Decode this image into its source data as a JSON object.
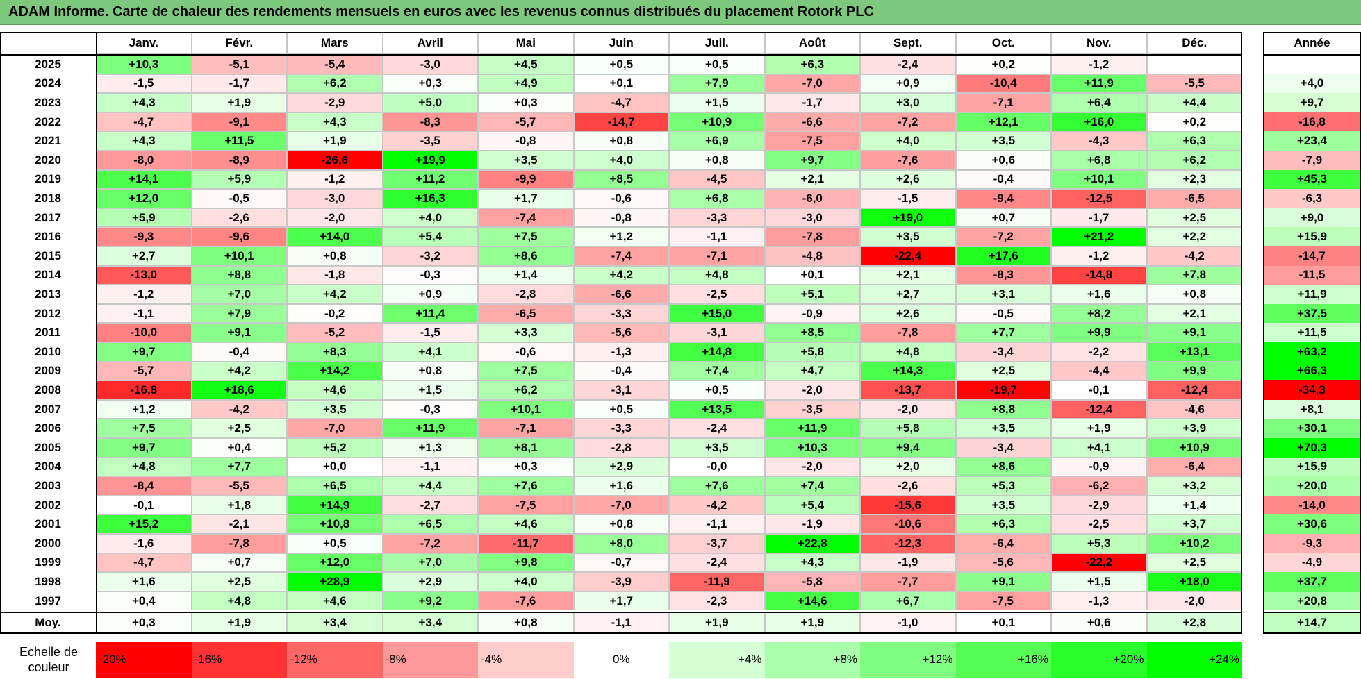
{
  "title": "ADAM Informe. Carte de chaleur des rendements mensuels en euros avec les revenus connus distribués du placement Rotork PLC",
  "chart_data": {
    "type": "heatmap",
    "title": "ADAM Informe. Carte de chaleur des rendements mensuels en euros avec les revenus connus distribués du placement Rotork PLC",
    "columns": [
      "Janv.",
      "Févr.",
      "Mars",
      "Avril",
      "Mai",
      "Juin",
      "Juil.",
      "Août",
      "Sept.",
      "Oct.",
      "Nov.",
      "Déc."
    ],
    "year_column": "Année",
    "rows": [
      {
        "year": "2025",
        "values": [
          "+10,3",
          "-5,1",
          "-5,4",
          "-3,0",
          "+4,5",
          "+0,5",
          "+0,5",
          "+6,3",
          "-2,4",
          "+0,2",
          "-1,2",
          ""
        ],
        "annual": ""
      },
      {
        "year": "2024",
        "values": [
          "-1,5",
          "-1,7",
          "+6,2",
          "+0,3",
          "+4,9",
          "+0,1",
          "+7,9",
          "-7,0",
          "+0,9",
          "-10,4",
          "+11,9",
          "-5,5"
        ],
        "annual": "+4,0"
      },
      {
        "year": "2023",
        "values": [
          "+4,3",
          "+1,9",
          "-2,9",
          "+5,0",
          "+0,3",
          "-4,7",
          "+1,5",
          "-1,7",
          "+3,0",
          "-7,1",
          "+6,4",
          "+4,4"
        ],
        "annual": "+9,7"
      },
      {
        "year": "2022",
        "values": [
          "-4,7",
          "-9,1",
          "+4,3",
          "-8,3",
          "-5,7",
          "-14,7",
          "+10,9",
          "-6,6",
          "-7,2",
          "+12,1",
          "+16,0",
          "+0,2"
        ],
        "annual": "-16,8"
      },
      {
        "year": "2021",
        "values": [
          "+4,3",
          "+11,5",
          "+1,9",
          "-3,5",
          "-0,8",
          "+0,8",
          "+6,9",
          "-7,5",
          "+4,0",
          "+3,5",
          "-4,3",
          "+6,3"
        ],
        "annual": "+23,4"
      },
      {
        "year": "2020",
        "values": [
          "-8,0",
          "-8,9",
          "-26,6",
          "+19,9",
          "+3,5",
          "+4,0",
          "+0,8",
          "+9,7",
          "-7,6",
          "+0,6",
          "+6,8",
          "+6,2"
        ],
        "annual": "-7,9"
      },
      {
        "year": "2019",
        "values": [
          "+14,1",
          "+5,9",
          "-1,2",
          "+11,2",
          "-9,9",
          "+8,5",
          "-4,5",
          "+2,1",
          "+2,6",
          "-0,4",
          "+10,1",
          "+2,3"
        ],
        "annual": "+45,3"
      },
      {
        "year": "2018",
        "values": [
          "+12,0",
          "-0,5",
          "-3,0",
          "+16,3",
          "+1,7",
          "-0,6",
          "+6,8",
          "-6,0",
          "-1,5",
          "-9,4",
          "-12,5",
          "-6,5"
        ],
        "annual": "-6,3"
      },
      {
        "year": "2017",
        "values": [
          "+5,9",
          "-2,6",
          "-2,0",
          "+4,0",
          "-7,4",
          "-0,8",
          "-3,3",
          "-3,0",
          "+19,0",
          "+0,7",
          "-1,7",
          "+2,5"
        ],
        "annual": "+9,0"
      },
      {
        "year": "2016",
        "values": [
          "-9,3",
          "-9,6",
          "+14,0",
          "+5,4",
          "+7,5",
          "+1,2",
          "-1,1",
          "-7,8",
          "+3,5",
          "-7,2",
          "+21,2",
          "+2,2"
        ],
        "annual": "+15,9"
      },
      {
        "year": "2015",
        "values": [
          "+2,7",
          "+10,1",
          "+0,8",
          "-3,2",
          "+8,6",
          "-7,4",
          "-7,1",
          "-4,8",
          "-22,4",
          "+17,6",
          "-1,2",
          "-4,2"
        ],
        "annual": "-14,7"
      },
      {
        "year": "2014",
        "values": [
          "-13,0",
          "+8,8",
          "-1,8",
          "-0,3",
          "+1,4",
          "+4,2",
          "+4,8",
          "+0,1",
          "+2,1",
          "-8,3",
          "-14,8",
          "+7,8"
        ],
        "annual": "-11,5"
      },
      {
        "year": "2013",
        "values": [
          "-1,2",
          "+7,0",
          "+4,2",
          "+0,9",
          "-2,8",
          "-6,6",
          "-2,5",
          "+5,1",
          "+2,7",
          "+3,1",
          "+1,6",
          "+0,8"
        ],
        "annual": "+11,9"
      },
      {
        "year": "2012",
        "values": [
          "-1,1",
          "+7,9",
          "-0,2",
          "+11,4",
          "-6,5",
          "-3,3",
          "+15,0",
          "-0,9",
          "+2,6",
          "-0,5",
          "+8,2",
          "+2,1"
        ],
        "annual": "+37,5"
      },
      {
        "year": "2011",
        "values": [
          "-10,0",
          "+9,1",
          "-5,2",
          "-1,5",
          "+3,3",
          "-5,6",
          "-3,1",
          "+8,5",
          "-7,8",
          "+7,7",
          "+9,9",
          "+9,1"
        ],
        "annual": "+11,5"
      },
      {
        "year": "2010",
        "values": [
          "+9,7",
          "-0,4",
          "+8,3",
          "+4,1",
          "-0,6",
          "-1,3",
          "+14,8",
          "+5,8",
          "+4,8",
          "-3,4",
          "-2,2",
          "+13,1"
        ],
        "annual": "+63,2"
      },
      {
        "year": "2009",
        "values": [
          "-5,7",
          "+4,2",
          "+14,2",
          "+0,8",
          "+7,5",
          "-0,4",
          "+7,4",
          "+4,7",
          "+14,3",
          "+2,5",
          "-4,4",
          "+9,9"
        ],
        "annual": "+66,3"
      },
      {
        "year": "2008",
        "values": [
          "-16,8",
          "+18,6",
          "+4,6",
          "+1,5",
          "+6,2",
          "-3,1",
          "+0,5",
          "-2,0",
          "-13,7",
          "-19,7",
          "-0,1",
          "-12,4"
        ],
        "annual": "-34,3"
      },
      {
        "year": "2007",
        "values": [
          "+1,2",
          "-4,2",
          "+3,5",
          "-0,3",
          "+10,1",
          "+0,5",
          "+13,5",
          "-3,5",
          "-2,0",
          "+8,8",
          "-12,4",
          "-4,6"
        ],
        "annual": "+8,1"
      },
      {
        "year": "2006",
        "values": [
          "+7,5",
          "+2,5",
          "-7,0",
          "+11,9",
          "-7,1",
          "-3,3",
          "-2,4",
          "+11,9",
          "+5,8",
          "+3,5",
          "+1,9",
          "+3,9"
        ],
        "annual": "+30,1"
      },
      {
        "year": "2005",
        "values": [
          "+9,7",
          "+0,4",
          "+5,2",
          "+1,3",
          "+8,1",
          "-2,8",
          "+3,5",
          "+10,3",
          "+9,4",
          "-3,4",
          "+4,1",
          "+10,9"
        ],
        "annual": "+70,3"
      },
      {
        "year": "2004",
        "values": [
          "+4,8",
          "+7,7",
          "+0,0",
          "-1,1",
          "+0,3",
          "+2,9",
          "-0,0",
          "-2,0",
          "+2,0",
          "+8,6",
          "-0,9",
          "-6,4"
        ],
        "annual": "+15,9"
      },
      {
        "year": "2003",
        "values": [
          "-8,4",
          "-5,5",
          "+6,5",
          "+4,4",
          "+7,6",
          "+1,6",
          "+7,6",
          "+7,4",
          "-2,6",
          "+5,3",
          "-6,2",
          "+3,2"
        ],
        "annual": "+20,0"
      },
      {
        "year": "2002",
        "values": [
          "-0,1",
          "+1,8",
          "+14,9",
          "-2,7",
          "-7,5",
          "-7,0",
          "-4,2",
          "+5,4",
          "-15,6",
          "+3,5",
          "-2,9",
          "+1,4"
        ],
        "annual": "-14,0"
      },
      {
        "year": "2001",
        "values": [
          "+15,2",
          "-2,1",
          "+10,8",
          "+6,5",
          "+4,6",
          "+0,8",
          "-1,1",
          "-1,9",
          "-10,6",
          "+6,3",
          "-2,5",
          "+3,7"
        ],
        "annual": "+30,6"
      },
      {
        "year": "2000",
        "values": [
          "-1,6",
          "-7,8",
          "+0,5",
          "-7,2",
          "-11,7",
          "+8,0",
          "-3,7",
          "+22,8",
          "-12,3",
          "-6,4",
          "+5,3",
          "+10,2"
        ],
        "annual": "-9,3"
      },
      {
        "year": "1999",
        "values": [
          "-4,7",
          "+0,7",
          "+12,0",
          "+7,0",
          "+9,8",
          "-0,7",
          "-2,4",
          "+4,3",
          "-1,9",
          "-5,6",
          "-22,2",
          "+2,5"
        ],
        "annual": "-4,9"
      },
      {
        "year": "1998",
        "values": [
          "+1,6",
          "+2,5",
          "+28,9",
          "+2,9",
          "+4,0",
          "-3,9",
          "-11,9",
          "-5,8",
          "-7,7",
          "+9,1",
          "+1,5",
          "+18,0"
        ],
        "annual": "+37,7"
      },
      {
        "year": "1997",
        "values": [
          "+0,4",
          "+4,8",
          "+4,6",
          "+9,2",
          "-7,6",
          "+1,7",
          "-2,3",
          "+14,6",
          "+6,7",
          "-7,5",
          "-1,3",
          "-2,0"
        ],
        "annual": "+20,8"
      }
    ],
    "average": {
      "label": "Moy.",
      "values": [
        "+0,3",
        "+1,9",
        "+3,4",
        "+3,4",
        "+0,8",
        "-1,1",
        "+1,9",
        "+1,9",
        "-1,0",
        "+0,1",
        "+0,6",
        "+2,8"
      ],
      "annual": "+14,7"
    },
    "color_scale": {
      "label_line1": "Echelle de",
      "label_line2": "couleur",
      "steps": [
        {
          "label": "-20%",
          "value": -20
        },
        {
          "label": "-16%",
          "value": -16
        },
        {
          "label": "-12%",
          "value": -12
        },
        {
          "label": "-8%",
          "value": -8
        },
        {
          "label": "-4%",
          "value": -4
        },
        {
          "label": "0%",
          "value": 0
        },
        {
          "label": "+4%",
          "value": 4
        },
        {
          "label": "+8%",
          "value": 8
        },
        {
          "label": "+12%",
          "value": 12
        },
        {
          "label": "+16%",
          "value": 16
        },
        {
          "label": "+20%",
          "value": 20
        },
        {
          "label": "+24%",
          "value": 24
        }
      ]
    },
    "colors": {
      "negative_max": "#ff0000",
      "positive_max": "#00ff00",
      "neutral": "#ffffff",
      "title_bar": "#7ec87e"
    }
  }
}
